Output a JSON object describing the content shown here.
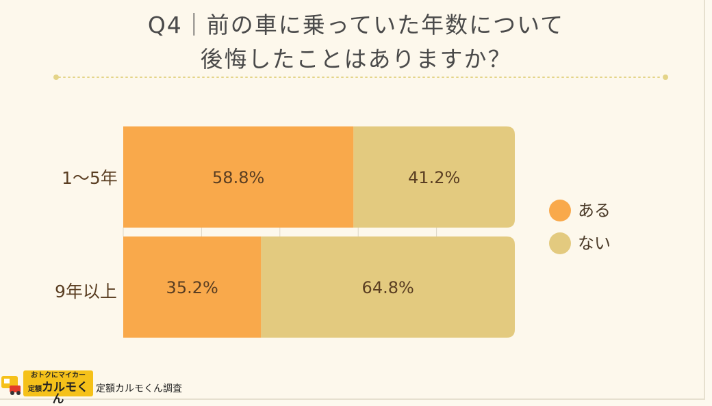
{
  "title": {
    "line1": "Q4｜前の車に乗っていた年数について",
    "line2": "後悔したことはありますか？"
  },
  "colors": {
    "background": "#fdf8ec",
    "divider": "#e4d488",
    "gridline": "#ddd6c6",
    "aru": "#f9a94b",
    "nai": "#e3ca7f",
    "value_text": "#5a3e22"
  },
  "chart_data": {
    "type": "bar",
    "orientation": "horizontal",
    "stacked": true,
    "normalized_percent": true,
    "categories": [
      "1～5年",
      "9年以上"
    ],
    "series": [
      {
        "name": "ある",
        "color": "#f9a94b",
        "values": [
          58.8,
          35.2
        ],
        "labels": [
          "58.8%",
          "35.2%"
        ]
      },
      {
        "name": "ない",
        "color": "#e3ca7f",
        "values": [
          41.2,
          64.8
        ],
        "labels": [
          "41.2%",
          "64.8%"
        ]
      }
    ],
    "xlim": [
      0,
      100
    ],
    "grid": true,
    "legend_position": "right"
  },
  "footer": {
    "logo_tagline": "おトクにマイカー",
    "logo_prefix": "定額",
    "logo_name": "カルモくん",
    "source": "定額カルモくん調査"
  }
}
